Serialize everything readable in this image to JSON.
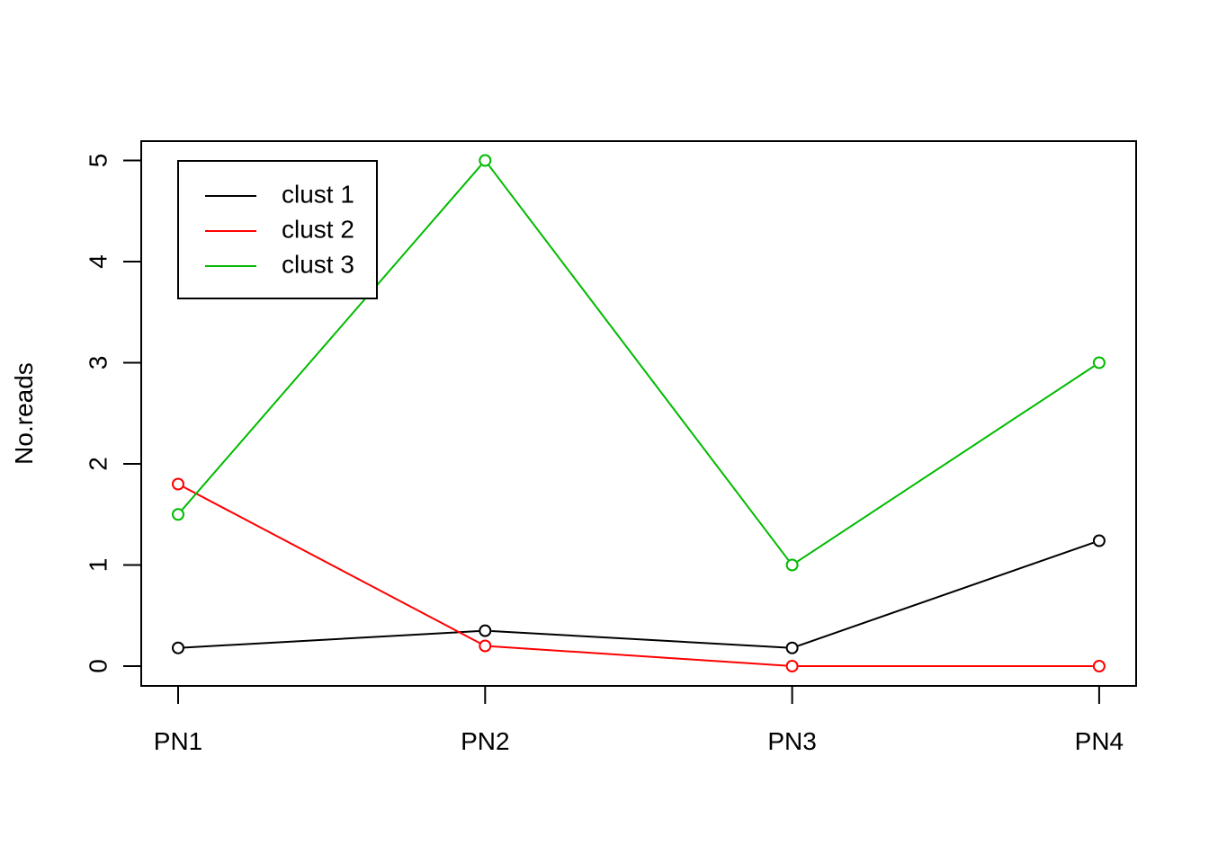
{
  "chart_data": {
    "type": "line",
    "title": "",
    "xlabel": "",
    "ylabel": "No.reads",
    "categories": [
      "PN1",
      "PN2",
      "PN3",
      "PN4"
    ],
    "ylim": [
      0,
      5
    ],
    "yticks": [
      0,
      1,
      2,
      3,
      4,
      5
    ],
    "grid": false,
    "legend_position": "top-left",
    "series": [
      {
        "name": "clust 1",
        "color": "#000000",
        "values": [
          0.18,
          0.35,
          0.18,
          1.24
        ]
      },
      {
        "name": "clust 2",
        "color": "#ff0000",
        "values": [
          1.8,
          0.2,
          0.0,
          0.0
        ]
      },
      {
        "name": "clust 3",
        "color": "#00bb00",
        "values": [
          1.5,
          5.0,
          1.0,
          3.0
        ]
      }
    ]
  }
}
